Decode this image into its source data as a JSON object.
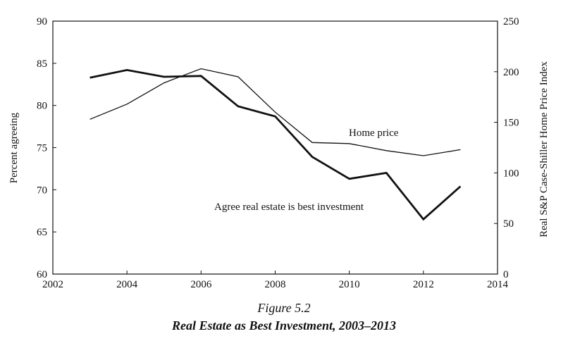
{
  "chart_data": {
    "type": "line",
    "figure_label": "Figure 5.2",
    "title": "Real Estate as Best Investment, 2003–2013",
    "xlabel": "",
    "ylabel_left": "Percent agreeing",
    "ylabel_right": "Real S&P Case-Shiller Home Price Index",
    "xlim": [
      2002,
      2014
    ],
    "ylim_left": [
      60,
      90
    ],
    "ylim_right": [
      0,
      250
    ],
    "x_ticks": [
      "2002",
      "2004",
      "2006",
      "2008",
      "2010",
      "2012",
      "2014"
    ],
    "y_left_ticks": [
      "60",
      "65",
      "70",
      "75",
      "80",
      "85",
      "90"
    ],
    "y_right_ticks": [
      "0",
      "50",
      "100",
      "150",
      "200",
      "250"
    ],
    "series": [
      {
        "name": "Agree real estate is best investment",
        "axis": "left",
        "x": [
          2003,
          2004,
          2005,
          2006,
          2007,
          2008,
          2009,
          2010,
          2011,
          2012,
          2013
        ],
        "values": [
          83.3,
          84.2,
          83.4,
          83.5,
          79.9,
          78.7,
          73.9,
          71.3,
          72.0,
          66.5,
          70.4
        ]
      },
      {
        "name": "Home price",
        "axis": "right",
        "x": [
          2003,
          2004,
          2005,
          2006,
          2007,
          2008,
          2009,
          2010,
          2011,
          2012,
          2013
        ],
        "values": [
          153,
          168,
          189,
          203,
          195,
          160,
          130,
          129,
          122,
          117,
          123
        ]
      }
    ],
    "annotations": {
      "home_price_label": "Home price",
      "agree_label": "Agree real estate is best investment"
    }
  }
}
